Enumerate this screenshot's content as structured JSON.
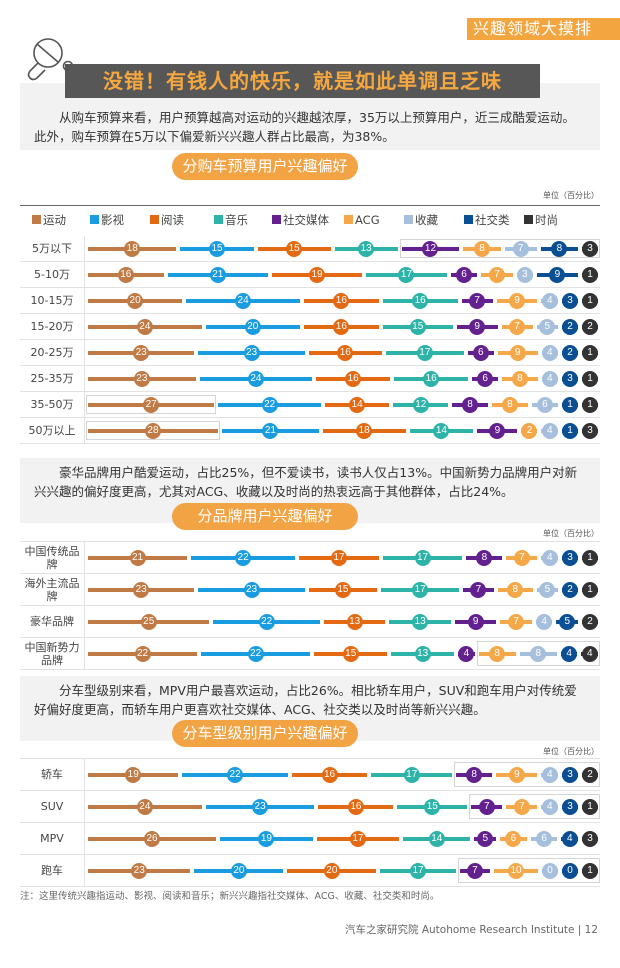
{
  "tag": "兴趣领域大摸排",
  "headline": "没错！有钱人的快乐，就是如此单调且乏味",
  "sections": [
    {
      "intro": "从购车预算来看，用户预算越高对运动的兴趣越浓厚，35万以上预算用户，近三成酷爱运动。此外，购车预算在5万以下偏爱新兴兴趣人群占比最高，为38%。",
      "pill": "分购车预算用户兴趣偏好",
      "unit": "单位（百分比）"
    },
    {
      "intro": "豪华品牌用户酷爱运动，占比25%，但不爱读书，读书人仅占13%。中国新势力品牌用户对新兴兴趣的偏好度更高，尤其对ACG、收藏以及时尚的热衷远高于其他群体，占比24%。",
      "pill": "分品牌用户兴趣偏好",
      "unit": "单位（百分比）"
    },
    {
      "intro": "分车型级别来看，MPV用户最喜欢运动，占比26%。相比轿车用户，SUV和跑车用户对传统爱好偏好度更高，而轿车用户更喜欢社交媒体、ACG、社交类以及时尚等新兴兴趣。",
      "pill": "分车型级别用户兴趣偏好",
      "unit": "单位（百分比）"
    }
  ],
  "legend": [
    {
      "label": "运动",
      "color": "#c07a45"
    },
    {
      "label": "影视",
      "color": "#1a9ce0"
    },
    {
      "label": "阅读",
      "color": "#e36a12"
    },
    {
      "label": "音乐",
      "color": "#2db3a8"
    },
    {
      "label": "社交媒体",
      "color": "#63208f"
    },
    {
      "label": "ACG",
      "color": "#f4a84a"
    },
    {
      "label": "收藏",
      "color": "#a6bfdc"
    },
    {
      "label": "社交类",
      "color": "#0a4f93"
    },
    {
      "label": "时尚",
      "color": "#333333"
    }
  ],
  "chart_data": [
    {
      "type": "bar",
      "stacked": true,
      "orientation": "horizontal",
      "title": "分购车预算用户兴趣偏好",
      "unit": "单位（百分比）",
      "categories": [
        "5万以下",
        "5-10万",
        "10-15万",
        "15-20万",
        "20-25万",
        "25-35万",
        "35-50万",
        "50万以上"
      ],
      "series": [
        {
          "name": "运动",
          "values": [
            18,
            16,
            20,
            24,
            23,
            23,
            27,
            28
          ]
        },
        {
          "name": "影视",
          "values": [
            15,
            21,
            24,
            20,
            23,
            24,
            22,
            21
          ]
        },
        {
          "name": "阅读",
          "values": [
            15,
            19,
            16,
            16,
            16,
            16,
            14,
            18
          ]
        },
        {
          "name": "音乐",
          "values": [
            13,
            17,
            16,
            15,
            17,
            16,
            12,
            14
          ]
        },
        {
          "name": "社交媒体",
          "values": [
            12,
            6,
            7,
            9,
            6,
            6,
            8,
            9
          ]
        },
        {
          "name": "ACG",
          "values": [
            8,
            7,
            9,
            7,
            9,
            8,
            8,
            2
          ]
        },
        {
          "name": "收藏",
          "values": [
            7,
            3,
            4,
            5,
            4,
            4,
            6,
            4
          ]
        },
        {
          "name": "社交类",
          "values": [
            8,
            9,
            3,
            2,
            2,
            3,
            1,
            1
          ]
        },
        {
          "name": "时尚",
          "values": [
            3,
            1,
            1,
            2,
            1,
            1,
            1,
            3
          ]
        }
      ],
      "highlights": [
        {
          "row": 0,
          "from_series": 4,
          "to_series": 8
        },
        {
          "row": 6,
          "from_series": 0,
          "to_series": 0
        },
        {
          "row": 7,
          "from_series": 0,
          "to_series": 0
        }
      ]
    },
    {
      "type": "bar",
      "stacked": true,
      "orientation": "horizontal",
      "title": "分品牌用户兴趣偏好",
      "unit": "单位（百分比）",
      "categories": [
        "中国传统品牌",
        "海外主流品牌",
        "豪华品牌",
        "中国新势力品牌"
      ],
      "series": [
        {
          "name": "运动",
          "values": [
            21,
            23,
            25,
            22
          ]
        },
        {
          "name": "影视",
          "values": [
            22,
            23,
            22,
            22
          ]
        },
        {
          "name": "阅读",
          "values": [
            17,
            15,
            13,
            15
          ]
        },
        {
          "name": "音乐",
          "values": [
            17,
            17,
            13,
            13
          ]
        },
        {
          "name": "社交媒体",
          "values": [
            8,
            7,
            9,
            4
          ]
        },
        {
          "name": "ACG",
          "values": [
            7,
            8,
            7,
            8
          ]
        },
        {
          "name": "收藏",
          "values": [
            4,
            5,
            4,
            8
          ]
        },
        {
          "name": "社交类",
          "values": [
            3,
            2,
            5,
            4
          ]
        },
        {
          "name": "时尚",
          "values": [
            1,
            1,
            2,
            4
          ]
        }
      ],
      "highlights": [
        {
          "row": 3,
          "from_series": 5,
          "to_series": 8
        }
      ]
    },
    {
      "type": "bar",
      "stacked": true,
      "orientation": "horizontal",
      "title": "分车型级别用户兴趣偏好",
      "unit": "单位（百分比）",
      "categories": [
        "轿车",
        "SUV",
        "MPV",
        "跑车"
      ],
      "series": [
        {
          "name": "运动",
          "values": [
            19,
            24,
            26,
            23
          ]
        },
        {
          "name": "影视",
          "values": [
            22,
            23,
            19,
            20
          ]
        },
        {
          "name": "阅读",
          "values": [
            16,
            16,
            17,
            20
          ]
        },
        {
          "name": "音乐",
          "values": [
            17,
            15,
            14,
            17
          ]
        },
        {
          "name": "社交媒体",
          "values": [
            8,
            7,
            5,
            7
          ]
        },
        {
          "name": "ACG",
          "values": [
            9,
            7,
            6,
            10
          ]
        },
        {
          "name": "收藏",
          "values": [
            4,
            4,
            6,
            0
          ]
        },
        {
          "name": "社交类",
          "values": [
            3,
            3,
            4,
            0
          ]
        },
        {
          "name": "时尚",
          "values": [
            2,
            1,
            3,
            1
          ]
        }
      ],
      "highlights": [
        {
          "row": 0,
          "from_series": 4,
          "to_series": 8
        },
        {
          "row": 1,
          "from_series": 4,
          "to_series": 8
        },
        {
          "row": 3,
          "from_series": 4,
          "to_series": 8
        }
      ]
    }
  ],
  "note": "注：这里传统兴趣指运动、影视、阅读和音乐；新兴兴趣指社交媒体、ACG、收藏、社交类和时尚。",
  "footer": "汽车之家研究院  Autohome Research Institute  |  12"
}
